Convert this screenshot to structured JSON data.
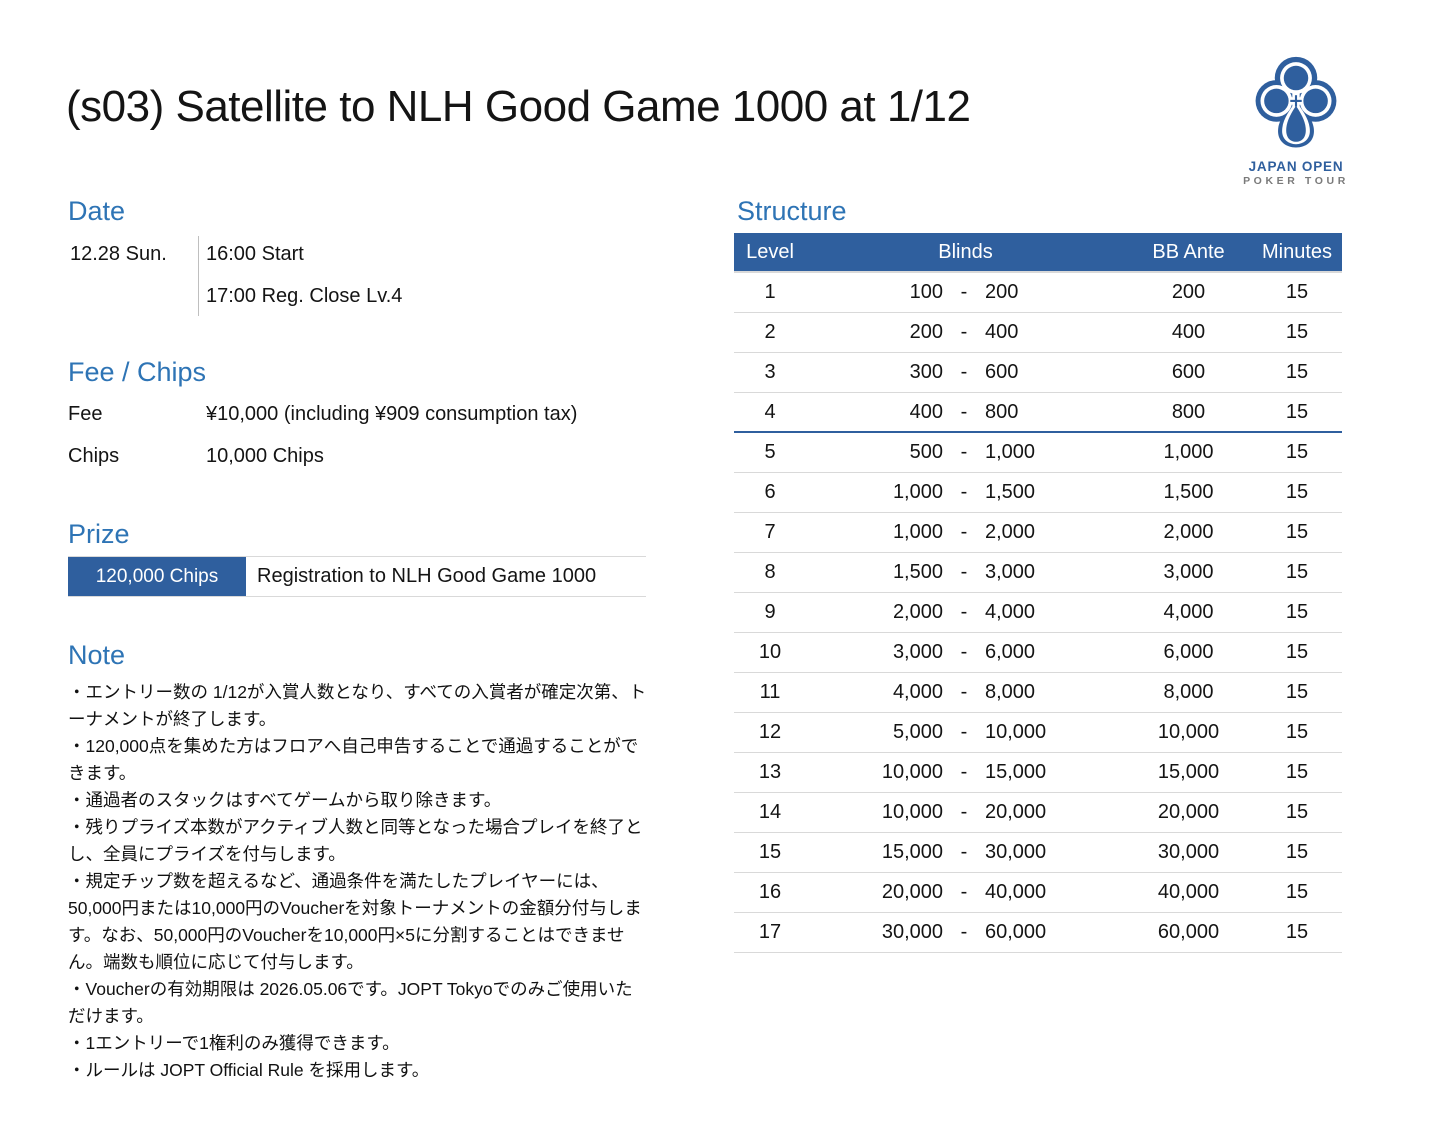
{
  "page": {
    "title": "(s03) Satellite to NLH Good Game 1000 at 1/12"
  },
  "logo": {
    "line1": "JAPAN OPEN",
    "line2": "POKER TOUR"
  },
  "date": {
    "heading": "Date",
    "day": "12.28 Sun.",
    "times": [
      "16:00 Start",
      "17:00 Reg. Close Lv.4"
    ]
  },
  "fee_chips": {
    "heading": "Fee / Chips",
    "rows": [
      {
        "label": "Fee",
        "value": "¥10,000 (including ¥909 consumption tax)"
      },
      {
        "label": "Chips",
        "value": "10,000 Chips"
      }
    ]
  },
  "prize": {
    "heading": "Prize",
    "amount": "120,000 Chips",
    "description": "Registration to NLH Good Game 1000"
  },
  "note": {
    "heading": "Note",
    "items": [
      "・エントリー数の 1/12が入賞人数となり、すべての入賞者が確定次第、トーナメントが終了します。",
      "・120,000点を集めた方はフロアへ自己申告することで通過することができます。",
      "・通過者のスタックはすべてゲームから取り除きます。",
      "・残りプライズ本数がアクティブ人数と同等となった場合プレイを終了とし、全員にプライズを付与します。",
      "・規定チップ数を超えるなど、通過条件を満たしたプレイヤーには、50,000円または10,000円のVoucherを対象トーナメントの金額分付与します。なお、50,000円のVoucherを10,000円×5に分割することはできません。端数も順位に応じて付与します。",
      "・Voucherの有効期限は 2026.05.06です。JOPT Tokyoでのみご使用いただけます。",
      "・1エントリーで1権利のみ獲得できます。",
      "・ルールは JOPT Official Rule を採用します。"
    ]
  },
  "structure": {
    "heading": "Structure",
    "columns": [
      "Level",
      "Blinds",
      "BB Ante",
      "Minutes"
    ],
    "blinds_separator": "-",
    "reg_close_after_level": "4",
    "rows": [
      {
        "level": "1",
        "sb": "100",
        "bb": "200",
        "ante": "200",
        "minutes": "15"
      },
      {
        "level": "2",
        "sb": "200",
        "bb": "400",
        "ante": "400",
        "minutes": "15"
      },
      {
        "level": "3",
        "sb": "300",
        "bb": "600",
        "ante": "600",
        "minutes": "15"
      },
      {
        "level": "4",
        "sb": "400",
        "bb": "800",
        "ante": "800",
        "minutes": "15"
      },
      {
        "level": "5",
        "sb": "500",
        "bb": "1,000",
        "ante": "1,000",
        "minutes": "15"
      },
      {
        "level": "6",
        "sb": "1,000",
        "bb": "1,500",
        "ante": "1,500",
        "minutes": "15"
      },
      {
        "level": "7",
        "sb": "1,000",
        "bb": "2,000",
        "ante": "2,000",
        "minutes": "15"
      },
      {
        "level": "8",
        "sb": "1,500",
        "bb": "3,000",
        "ante": "3,000",
        "minutes": "15"
      },
      {
        "level": "9",
        "sb": "2,000",
        "bb": "4,000",
        "ante": "4,000",
        "minutes": "15"
      },
      {
        "level": "10",
        "sb": "3,000",
        "bb": "6,000",
        "ante": "6,000",
        "minutes": "15"
      },
      {
        "level": "11",
        "sb": "4,000",
        "bb": "8,000",
        "ante": "8,000",
        "minutes": "15"
      },
      {
        "level": "12",
        "sb": "5,000",
        "bb": "10,000",
        "ante": "10,000",
        "minutes": "15"
      },
      {
        "level": "13",
        "sb": "10,000",
        "bb": "15,000",
        "ante": "15,000",
        "minutes": "15"
      },
      {
        "level": "14",
        "sb": "10,000",
        "bb": "20,000",
        "ante": "20,000",
        "minutes": "15"
      },
      {
        "level": "15",
        "sb": "15,000",
        "bb": "30,000",
        "ante": "30,000",
        "minutes": "15"
      },
      {
        "level": "16",
        "sb": "20,000",
        "bb": "40,000",
        "ante": "40,000",
        "minutes": "15"
      },
      {
        "level": "17",
        "sb": "30,000",
        "bb": "60,000",
        "ante": "60,000",
        "minutes": "15"
      }
    ]
  },
  "colors": {
    "accent_blue": "#2f5f9e",
    "heading_blue": "#2e74b5",
    "separator_gray": "#d9d9d9"
  }
}
